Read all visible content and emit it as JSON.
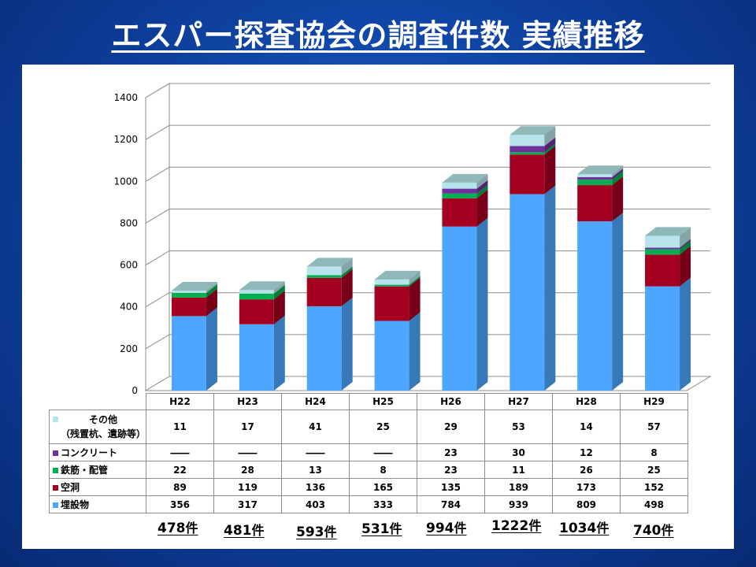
{
  "title": "エスパー探査協会の調査件数 実績推移",
  "colors": {
    "other": "#b7e4ea",
    "concrete": "#7030a0",
    "rebar": "#00b050",
    "cavity": "#a50021",
    "buried": "#4da6ff"
  },
  "chart_data": {
    "type": "bar",
    "stacked": true,
    "categories": [
      "H22",
      "H23",
      "H24",
      "H25",
      "H26",
      "H27",
      "H28",
      "H29"
    ],
    "ylim": [
      0,
      1400
    ],
    "yticks": [
      0,
      200,
      400,
      600,
      800,
      1000,
      1200,
      1400
    ],
    "ytick_labels": [
      "0",
      "200",
      "400",
      "600",
      "800",
      "1000",
      "1200",
      "1400"
    ],
    "grid": true,
    "series": [
      {
        "key": "buried",
        "name": "埋設物",
        "values": [
          356,
          317,
          403,
          333,
          784,
          939,
          809,
          498
        ],
        "labels": [
          "356",
          "317",
          "403",
          "333",
          "784",
          "939",
          "809",
          "498"
        ]
      },
      {
        "key": "cavity",
        "name": "空洞",
        "values": [
          89,
          119,
          136,
          165,
          135,
          189,
          173,
          152
        ],
        "labels": [
          "89",
          "119",
          "136",
          "165",
          "135",
          "189",
          "173",
          "152"
        ]
      },
      {
        "key": "rebar",
        "name": "鉄筋・配管",
        "values": [
          22,
          28,
          13,
          8,
          23,
          11,
          26,
          25
        ],
        "labels": [
          "22",
          "28",
          "13",
          "8",
          "23",
          "11",
          "26",
          "25"
        ]
      },
      {
        "key": "concrete",
        "name": "コンクリート",
        "values": [
          0,
          0,
          0,
          0,
          23,
          30,
          12,
          8
        ],
        "labels": [
          "――",
          "――",
          "――",
          "――",
          "23",
          "30",
          "12",
          "8"
        ]
      },
      {
        "key": "other",
        "name_line1": "その他",
        "name_line2": "（残置杭、遺跡等）",
        "values": [
          11,
          17,
          41,
          25,
          29,
          53,
          14,
          57
        ],
        "labels": [
          "11",
          "17",
          "41",
          "25",
          "29",
          "53",
          "14",
          "57"
        ]
      }
    ],
    "totals": [
      "478",
      "481",
      "593",
      "531",
      "994",
      "1222",
      "1034",
      "740"
    ],
    "total_unit": "件"
  }
}
